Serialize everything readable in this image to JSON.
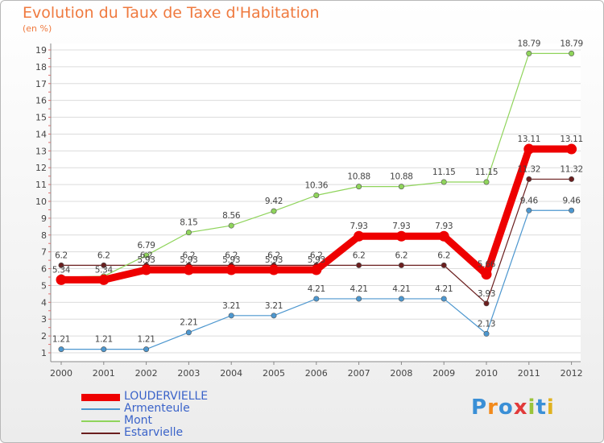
{
  "title": "Evolution du Taux de Taxe d'Habitation",
  "subtitle": "(en %)",
  "chart_data": {
    "type": "line",
    "title": "Evolution du Taux de Taxe d'Habitation",
    "subtitle": "(en %)",
    "ylim": [
      1,
      19
    ],
    "yticks": [
      1,
      2,
      3,
      4,
      5,
      6,
      7,
      8,
      9,
      10,
      11,
      12,
      13,
      14,
      15,
      16,
      17,
      18,
      19
    ],
    "x": [
      "2000",
      "2001",
      "2002",
      "2003",
      "2004",
      "2005",
      "2006",
      "2007",
      "2008",
      "2009",
      "2010",
      "2011",
      "2012"
    ],
    "grid": "horizontal",
    "legend_placement": "bottom-left",
    "series": [
      {
        "name": "Armenteule",
        "color": "#4d97cf",
        "values": [
          1.21,
          1.21,
          1.21,
          2.21,
          3.21,
          3.21,
          4.21,
          4.21,
          4.21,
          4.21,
          2.13,
          9.46,
          9.46
        ],
        "labels": [
          "1.21",
          "1.21",
          "1.21",
          "2.21",
          "3.21",
          "3.21",
          "4.21",
          "4.21",
          "4.21",
          "4.21",
          "2.13",
          "9.46",
          "9.46"
        ]
      },
      {
        "name": "Estarvielle",
        "color": "#6b1f1f",
        "values": [
          6.2,
          6.2,
          6.2,
          6.2,
          6.2,
          6.2,
          6.2,
          6.2,
          6.2,
          6.2,
          3.93,
          11.32,
          11.32
        ],
        "labels": [
          "6.2",
          "6.2",
          "6.2",
          "6.2",
          "6.2",
          "6.2",
          "6.2",
          "6.2",
          "6.2",
          "6.2",
          "3.93",
          "11.32",
          "11.32"
        ]
      },
      {
        "name": "Mont",
        "color": "#8fd45b",
        "values": [
          5.5,
          5.55,
          6.79,
          8.15,
          8.56,
          9.42,
          10.36,
          10.88,
          10.88,
          11.15,
          11.15,
          18.79,
          18.79
        ],
        "labels": [
          "",
          "",
          "6.79",
          "8.15",
          "8.56",
          "9.42",
          "10.36",
          "10.88",
          "10.88",
          "11.15",
          "11.15",
          "18.79",
          "18.79"
        ]
      },
      {
        "name": "LOUDERVIELLE",
        "color": "#ee0000",
        "values": [
          5.34,
          5.34,
          5.93,
          5.93,
          5.93,
          5.93,
          5.93,
          7.93,
          7.93,
          7.93,
          5.66,
          13.11,
          13.11
        ],
        "labels": [
          "5.34",
          "5.34",
          "5.93",
          "5.93",
          "5.93",
          "5.93",
          "5.93",
          "7.93",
          "7.93",
          "7.93",
          "5.66",
          "13.11",
          "13.11"
        ]
      }
    ]
  },
  "legend": [
    {
      "name": "LOUDERVIELLE",
      "color": "#ee0000",
      "width": 9
    },
    {
      "name": "Armenteule",
      "color": "#4d97cf",
      "width": 2
    },
    {
      "name": "Mont",
      "color": "#8fd45b",
      "width": 2
    },
    {
      "name": "Estarvielle",
      "color": "#6b1f1f",
      "width": 2
    }
  ],
  "logo": {
    "text": "Proxiti",
    "colors": [
      "#3a8fd6",
      "#f28a1c",
      "#3a8fd6",
      "#e13a3a",
      "#9ac43a",
      "#3a8fd6",
      "#e0b21f"
    ]
  }
}
